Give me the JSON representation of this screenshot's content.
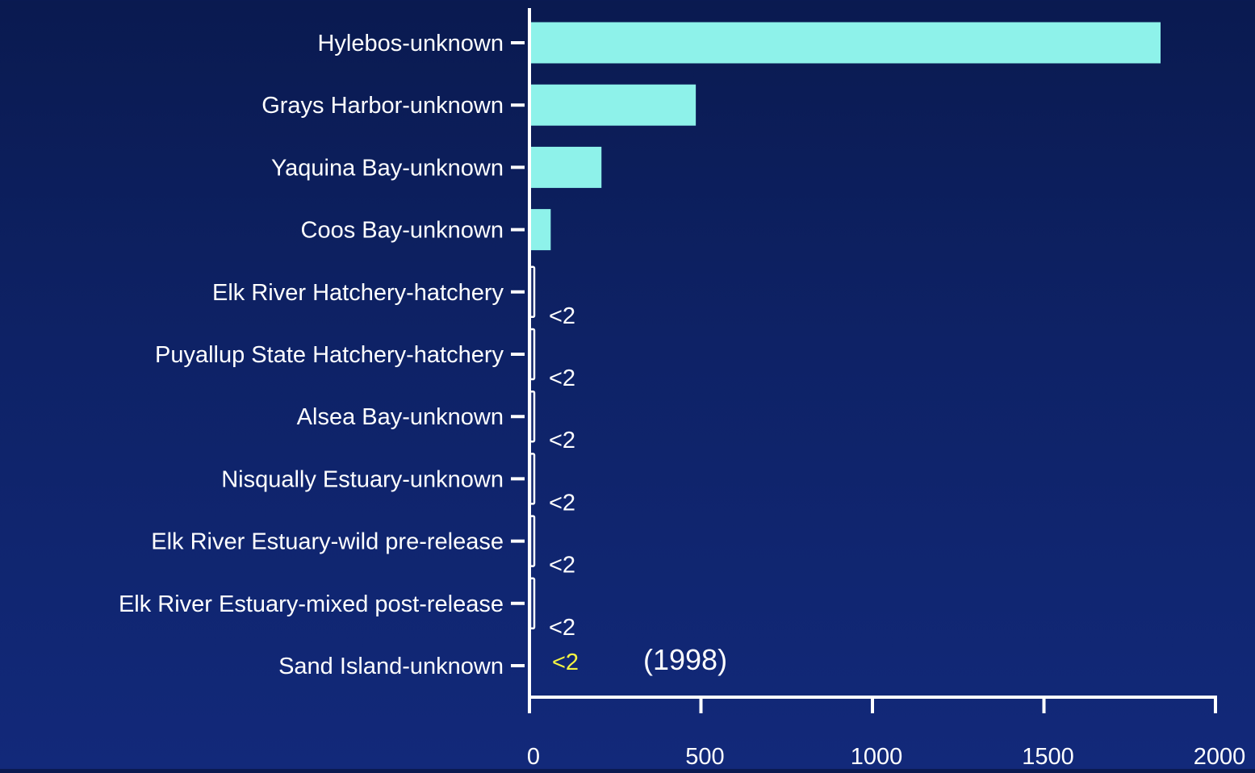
{
  "chart_data": {
    "type": "bar",
    "orientation": "horizontal",
    "categories": [
      "Hylebos-unknown",
      "Grays Harbor-unknown",
      "Yaquina Bay-unknown",
      "Coos Bay-unknown",
      "Elk River Hatchery-hatchery",
      "Puyallup State Hatchery-hatchery",
      "Alsea Bay-unknown",
      "Nisqually Estuary-unknown",
      "Elk River Estuary-wild pre-release",
      "Elk River Estuary-mixed post-release",
      "Sand Island-unknown"
    ],
    "values": [
      1840,
      485,
      210,
      62,
      2,
      2,
      2,
      2,
      2,
      2,
      0
    ],
    "bar_labels": [
      "",
      "",
      "",
      "",
      "<2",
      "<2",
      "<2",
      "<2",
      "<2",
      "<2",
      "<2"
    ],
    "annotations": [
      {
        "category": "Sand Island-unknown",
        "text": "(1998)"
      }
    ],
    "xticks": [
      "0",
      "500",
      "1000",
      "1500",
      "2000"
    ],
    "xlim": [
      0,
      2000
    ],
    "title": "",
    "xlabel": "",
    "ylabel": "",
    "grid": false,
    "legend": "none",
    "colors": {
      "bar": "#8ef2ea",
      "axis": "#ffffff",
      "text": "#ffffff",
      "highlight_label": "#f5f542"
    }
  }
}
